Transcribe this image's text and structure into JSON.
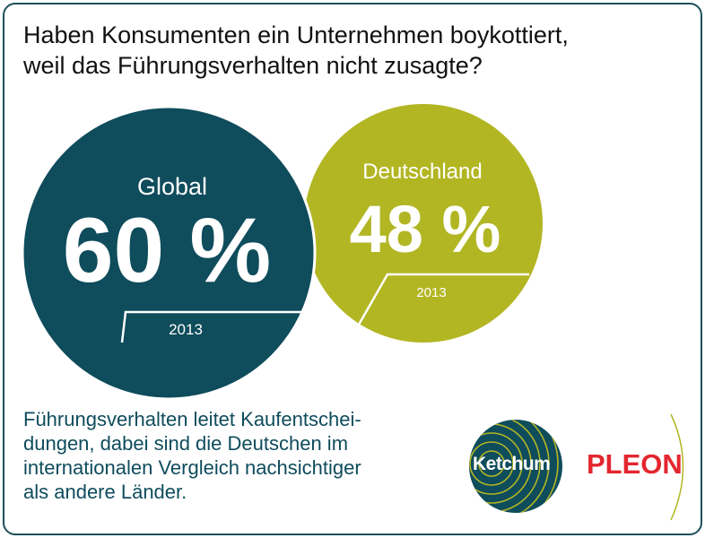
{
  "title_line1": "Haben Konsumenten ein Unternehmen boykottiert,",
  "title_line2": "weil das Führungsverhalten nicht zusagte?",
  "global": {
    "label": "Global",
    "value_text": "60 %",
    "year": "2013",
    "color": "#0f4c5c"
  },
  "germany": {
    "label": "Deutschland",
    "value_text": "48 %",
    "year": "2013",
    "color": "#b2b623"
  },
  "caption_lines": [
    "Führungsverhalten leitet Kaufentschei-",
    "dungen, dabei sind die Deutschen im",
    "internationalen Vergleich nachsichtiger",
    "als andere Länder."
  ],
  "logos": {
    "ketchum": "Ketchum",
    "pleon": "PLEON"
  }
}
